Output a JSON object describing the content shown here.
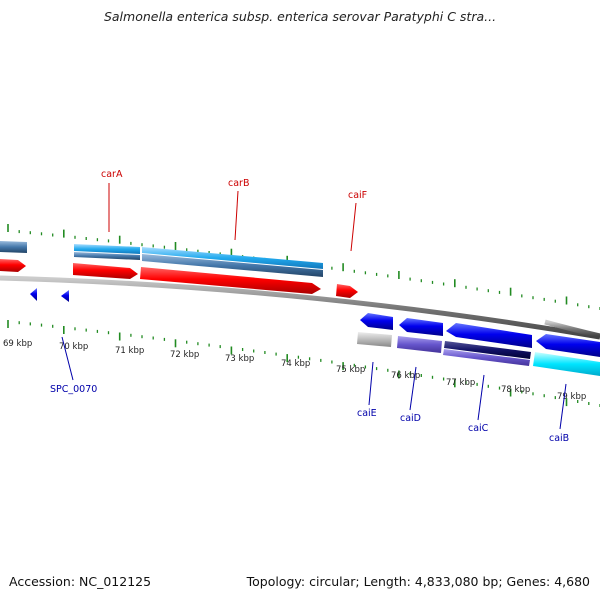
{
  "title": "Salmonella enterica subsp. enterica serovar Paratyphi C stra...",
  "footer": {
    "accession": "Accession: NC_012125",
    "summary": "Topology: circular; Length: 4,833,080 bp; Genes: 4,680"
  },
  "ticks": [
    "69 kbp",
    "70 kbp",
    "71 kbp",
    "72 kbp",
    "73 kbp",
    "74 kbp",
    "75 kbp",
    "76 kbp",
    "77 kbp",
    "78 kbp",
    "79 kbp"
  ],
  "genes_top": [
    {
      "label": "carA",
      "color": "#cc0000"
    },
    {
      "label": "carB",
      "color": "#cc0000"
    },
    {
      "label": "caiF",
      "color": "#cc0000"
    }
  ],
  "genes_bottom": [
    {
      "label": "SPC_0070",
      "color": "#0000aa"
    },
    {
      "label": "caiE",
      "color": "#0000aa"
    },
    {
      "label": "caiD",
      "color": "#0000aa"
    },
    {
      "label": "caiC",
      "color": "#0000aa"
    },
    {
      "label": "caiB",
      "color": "#0000aa"
    }
  ],
  "colors": {
    "forward_cds": "#ff0000",
    "reverse_cds": "#0000ee",
    "backbone": "#888888",
    "tick": "#228b22",
    "feature_light_blue": "#33bbee",
    "feature_steel_blue": "#5588bb",
    "feature_gray": "#bbbbbb",
    "feature_purple": "#7766cc",
    "feature_navy": "#111166",
    "feature_cyan": "#00e5ff"
  }
}
